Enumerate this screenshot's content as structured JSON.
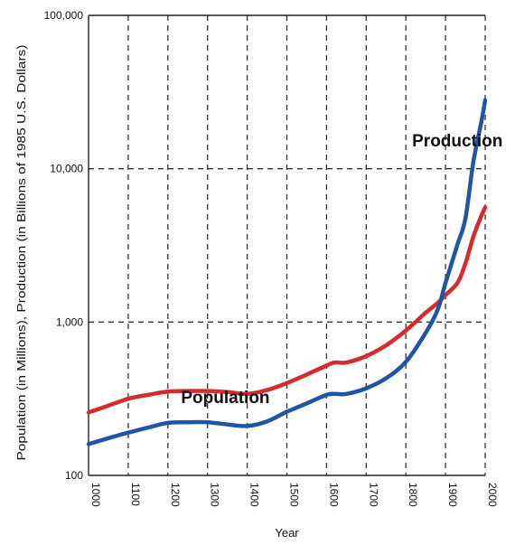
{
  "chart_data": {
    "type": "line",
    "title": "",
    "xlabel": "Year",
    "ylabel": "Population (in Millions), Production (in Billions of 1985 U.S. Dollars)",
    "y_scale": "log",
    "xlim": [
      1000,
      2000
    ],
    "ylim": [
      100,
      100000
    ],
    "grid": true,
    "x_ticks": [
      "1000",
      "1100",
      "1200",
      "1300",
      "1400",
      "1500",
      "1600",
      "1700",
      "1800",
      "1900",
      "2000"
    ],
    "y_ticks": [
      "100",
      "1,000",
      "10,000",
      "100,000"
    ],
    "series": [
      {
        "name": "Population",
        "color": "#d62b2b",
        "x": [
          1000,
          1050,
          1100,
          1150,
          1200,
          1250,
          1300,
          1350,
          1400,
          1450,
          1500,
          1550,
          1600,
          1620,
          1650,
          1700,
          1750,
          1800,
          1850,
          1880,
          1900,
          1930,
          1950,
          1970,
          1990,
          2000
        ],
        "y": [
          257,
          285,
          316,
          335,
          352,
          355,
          355,
          350,
          340,
          360,
          400,
          455,
          520,
          545,
          545,
          600,
          705,
          880,
          1150,
          1330,
          1500,
          1800,
          2400,
          3600,
          4900,
          5600
        ]
      },
      {
        "name": "Production",
        "color": "#1f55a6",
        "x": [
          1000,
          1050,
          1100,
          1150,
          1200,
          1250,
          1300,
          1350,
          1400,
          1450,
          1500,
          1550,
          1600,
          1620,
          1650,
          1700,
          1750,
          1800,
          1850,
          1880,
          1900,
          1930,
          1950,
          1970,
          1990,
          2000
        ],
        "y": [
          160,
          175,
          190,
          205,
          220,
          222,
          222,
          215,
          210,
          225,
          260,
          295,
          335,
          340,
          340,
          370,
          430,
          550,
          850,
          1200,
          1800,
          3200,
          4700,
          11000,
          20000,
          28000
        ]
      }
    ]
  }
}
